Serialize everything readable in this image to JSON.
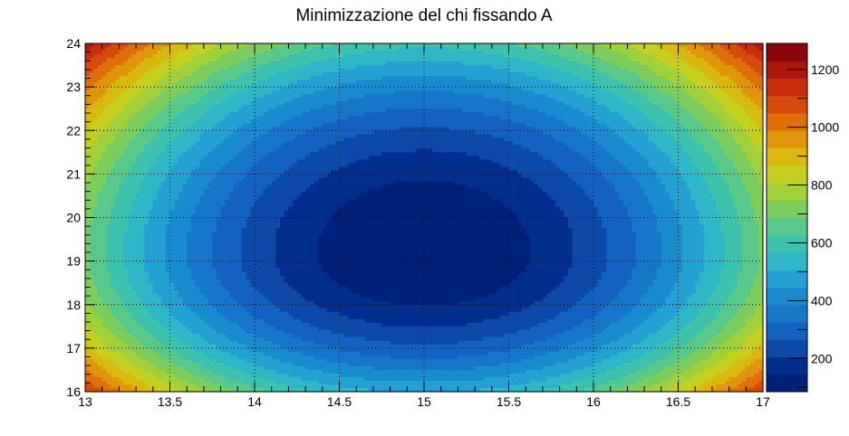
{
  "chart_data": {
    "type": "heatmap",
    "title": "Minimizzazione del chi fissando A",
    "xlim": [
      13,
      17
    ],
    "ylim": [
      16,
      24
    ],
    "x_ticks": [
      13,
      13.5,
      14,
      14.5,
      15,
      15.5,
      16,
      16.5,
      17
    ],
    "x_tick_labels": [
      "13",
      "13.5",
      "14",
      "14.5",
      "15",
      "15.5",
      "16",
      "16.5",
      "17"
    ],
    "y_ticks": [
      16,
      17,
      18,
      19,
      20,
      21,
      22,
      23,
      24
    ],
    "y_tick_labels": [
      "16",
      "17",
      "18",
      "19",
      "20",
      "21",
      "22",
      "23",
      "24"
    ],
    "colorbar": {
      "range": [
        85,
        1290
      ],
      "ticks": [
        200,
        400,
        600,
        800,
        1000,
        1200
      ],
      "tick_labels": [
        "200",
        "400",
        "600",
        "800",
        "1000",
        "1200"
      ],
      "levels": 20
    },
    "surface": {
      "kind": "quadratic-bowl",
      "minimum": {
        "x": 15,
        "y": 19.2,
        "value": 85
      },
      "corner_values": {
        "x13_y24": 1290,
        "x17_y24": 1290,
        "x13_y16": 1200,
        "x17_y16": 1200
      },
      "edge_values": {
        "x13_y19.2": 700,
        "x15_y24": 590,
        "x15_y16": 500
      }
    },
    "grid": true,
    "palette": [
      "#00207a",
      "#002e8c",
      "#0d4aa8",
      "#1462bf",
      "#1677c9",
      "#1b8bd0",
      "#24a1d2",
      "#2fb6c7",
      "#3ec2ae",
      "#58c98b",
      "#7dcd5e",
      "#a2d03a",
      "#c5cf20",
      "#d9b80f",
      "#e0950b",
      "#df6f0b",
      "#d74a0c",
      "#c92d0d",
      "#ad150d",
      "#8a060a",
      "#6b0307"
    ]
  }
}
